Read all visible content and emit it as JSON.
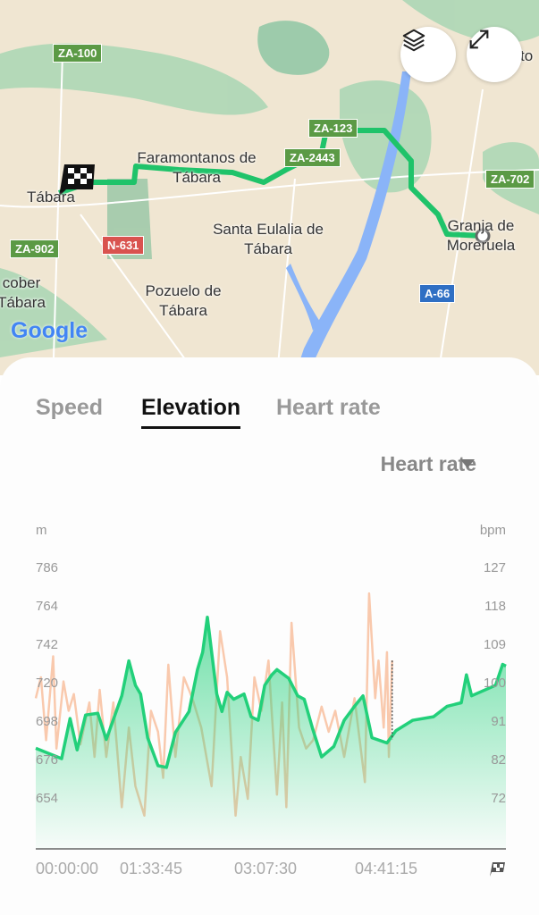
{
  "map": {
    "places": [
      "Tábara",
      "Faramontanos de Tábara",
      "Santa Eulalia de Tábara",
      "Pozuelo de Tábara",
      "Granja de Moreruela",
      "cober Tábara",
      "to"
    ],
    "roads": [
      "ZA-100",
      "ZA-123",
      "ZA-2443",
      "ZA-702",
      "ZA-902",
      "N-631",
      "A-66"
    ],
    "road_colors": {
      "regional": "#5b9a45",
      "national": "#d9534f",
      "highway": "#2f6fc4"
    },
    "route_color": "#1fc36a",
    "logo": "Google",
    "buttons": {
      "layers": "layers-icon",
      "fullscreen": "expand-icon"
    }
  },
  "tabs": [
    {
      "label": "Speed"
    },
    {
      "label": "Elevation",
      "active": true
    },
    {
      "label": "Heart rate"
    }
  ],
  "overlay_select": {
    "value": "Heart rate"
  },
  "chart_data": {
    "type": "area",
    "left_unit": "m",
    "right_unit": "bpm",
    "left_ticks": [
      "786",
      "764",
      "742",
      "720",
      "698",
      "676",
      "654"
    ],
    "right_ticks": [
      "127",
      "118",
      "109",
      "100",
      "91",
      "82",
      "72"
    ],
    "x_ticks": [
      "00:00:00",
      "01:33:45",
      "03:07:30",
      "04:41:15"
    ],
    "x_end_icon": "checkered-flag-icon",
    "colors": {
      "elevation": "#22d07a",
      "heart_rate": "#f9c9ad"
    },
    "series": [
      {
        "key": "elevation",
        "axis": "left",
        "t": [
          0,
          0.055,
          0.073,
          0.088,
          0.106,
          0.132,
          0.15,
          0.183,
          0.198,
          0.212,
          0.223,
          0.238,
          0.26,
          0.278,
          0.297,
          0.326,
          0.344,
          0.355,
          0.365,
          0.385,
          0.396,
          0.407,
          0.421,
          0.443,
          0.458,
          0.473,
          0.487,
          0.502,
          0.513,
          0.538,
          0.557,
          0.571,
          0.589,
          0.608,
          0.634,
          0.656,
          0.678,
          0.696,
          0.715,
          0.747,
          0.766,
          0.802,
          0.846,
          0.875,
          0.905,
          0.916,
          0.927,
          0.978,
          0.993,
          1
        ],
        "values": [
          683,
          677,
          700,
          682,
          702,
          703,
          688,
          713,
          733,
          719,
          714,
          689,
          673,
          672,
          692,
          704,
          728,
          738,
          758,
          714,
          704,
          715,
          711,
          714,
          701,
          699,
          719,
          725,
          728,
          723,
          713,
          711,
          694,
          678,
          684,
          699,
          707,
          713,
          689,
          686,
          693,
          699,
          701,
          707,
          709,
          725,
          713,
          719,
          731,
          730
        ]
      },
      {
        "key": "heart_rate",
        "axis": "right",
        "t": [
          0,
          0.011,
          0.022,
          0.037,
          0.044,
          0.059,
          0.07,
          0.081,
          0.095,
          0.114,
          0.125,
          0.136,
          0.15,
          0.165,
          0.183,
          0.198,
          0.212,
          0.231,
          0.245,
          0.26,
          0.271,
          0.282,
          0.297,
          0.315,
          0.333,
          0.352,
          0.363,
          0.374,
          0.392,
          0.407,
          0.425,
          0.436,
          0.451,
          0.465,
          0.48,
          0.495,
          0.513,
          0.524,
          0.533,
          0.544,
          0.56,
          0.575,
          0.59,
          0.608,
          0.623,
          0.637,
          0.656,
          0.678,
          0.7,
          0.709,
          0.722,
          0.729,
          0.74,
          0.747,
          0.751,
          0.758
        ],
        "values": [
          96,
          101,
          86,
          106,
          84,
          100,
          93,
          97,
          85,
          95,
          82,
          98,
          82,
          95,
          70,
          89,
          75,
          68,
          93,
          88,
          77,
          104,
          82,
          101,
          96,
          89,
          82,
          75,
          112,
          101,
          68,
          82,
          72,
          101,
          93,
          105,
          73,
          95,
          70,
          114,
          89,
          84,
          86,
          94,
          88,
          93,
          82,
          96,
          76,
          121,
          96,
          105,
          89,
          107,
          82,
          105
        ]
      }
    ]
  }
}
